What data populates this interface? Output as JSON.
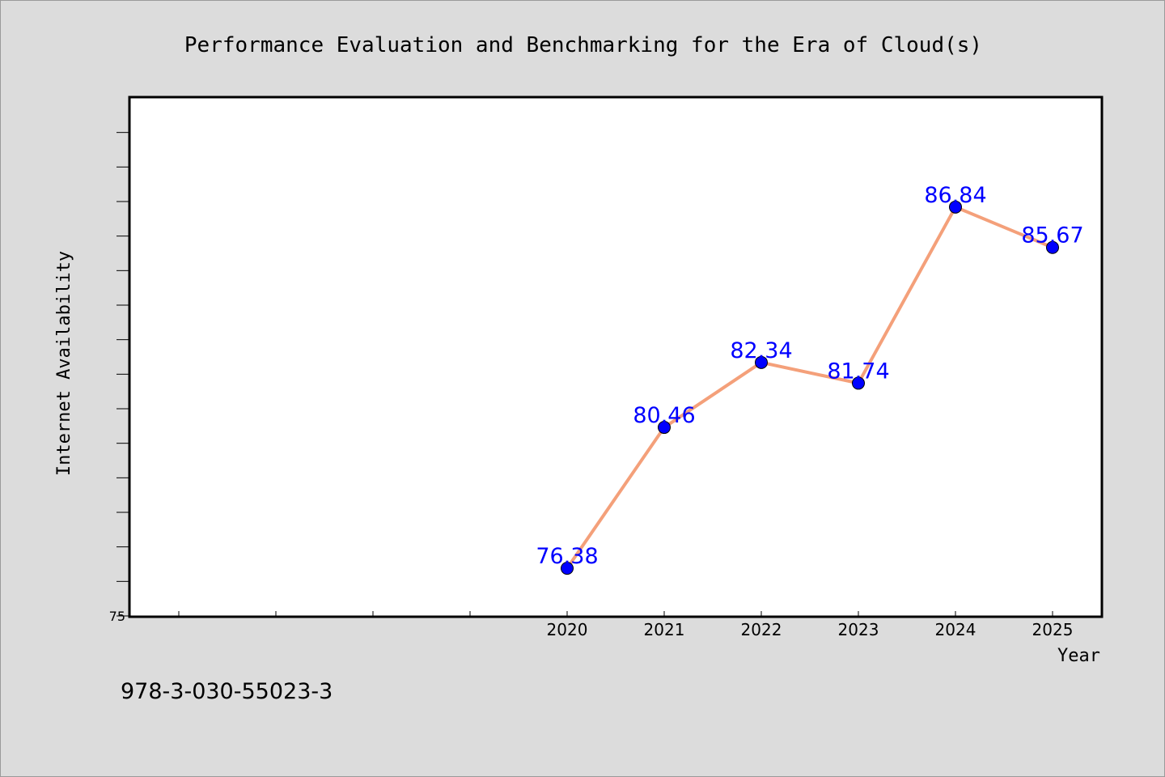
{
  "chart_data": {
    "type": "line",
    "title": "Performance Evaluation and Benchmarking for the Era of Cloud(s)",
    "xlabel": "Year",
    "ylabel": "Internet Availability",
    "x": [
      "2020",
      "2021",
      "2022",
      "2023",
      "2024",
      "2025"
    ],
    "x_positions": [
      2020,
      2021,
      2022,
      2023,
      2024,
      2025
    ],
    "xlim": [
      2015.5,
      2025.5
    ],
    "x_minor_ticks": [
      2016,
      2017,
      2018,
      2019
    ],
    "series": [
      {
        "values": [
          76.38,
          80.46,
          82.34,
          81.74,
          86.84,
          85.67
        ],
        "data_labels": [
          "76.38",
          "80.46",
          "82.34",
          "81.74",
          "86.84",
          "85.67"
        ],
        "line_color": "#f4a07a",
        "marker_color": "#0000ff",
        "label_color": "#0000ff"
      }
    ],
    "ylim": [
      75,
      90
    ],
    "y_tick_labels": [
      "75"
    ],
    "y_ticks": [
      75,
      76,
      77,
      78,
      79,
      80,
      81,
      82,
      83,
      84,
      85,
      86,
      87,
      88,
      89
    ],
    "grid": false,
    "legend": "none"
  },
  "footer": {
    "isbn": "978-3-030-55023-3"
  },
  "colors": {
    "background": "#dcdcdc",
    "plot_background": "#ffffff",
    "axis": "#000000"
  }
}
